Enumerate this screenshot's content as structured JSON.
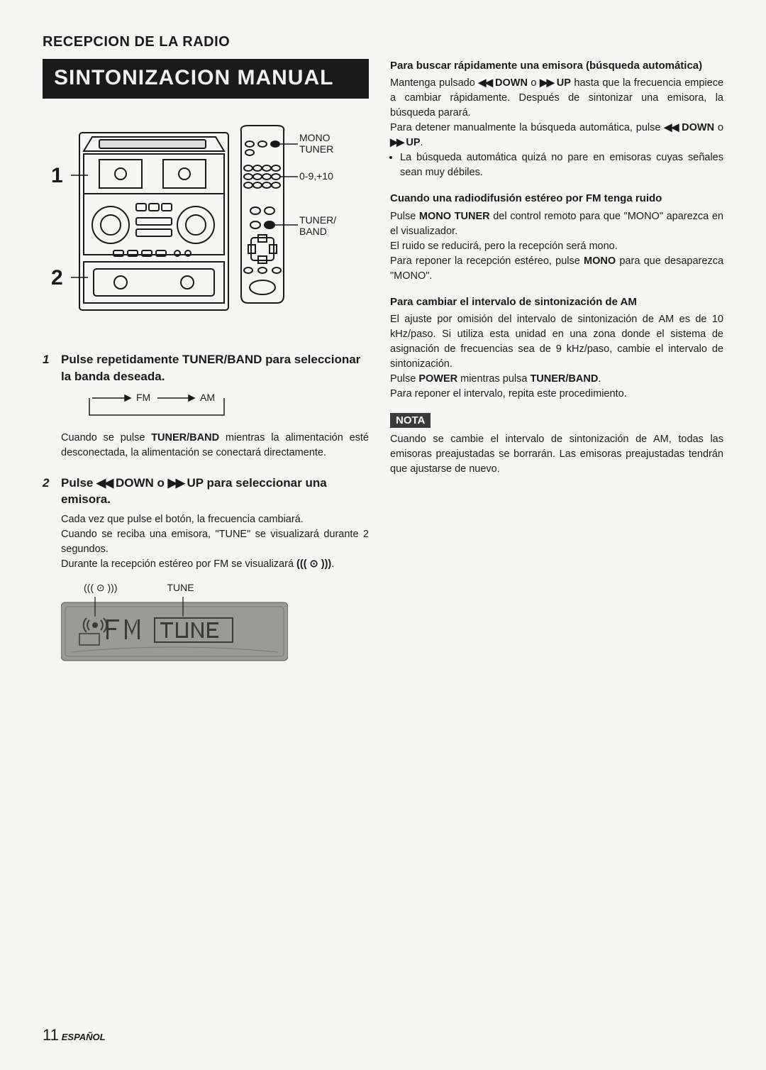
{
  "section_header": "RECEPCION DE LA RADIO",
  "title_banner": "SINTONIZACION MANUAL",
  "diagram_labels": {
    "mono_tuner_1": "MONO",
    "mono_tuner_2": "TUNER",
    "nums": "0-9,+10",
    "tuner_band_1": "TUNER/",
    "tuner_band_2": "BAND",
    "n1": "1",
    "n2": "2"
  },
  "step1": {
    "num": "1",
    "title": "Pulse repetidamente TUNER/BAND para seleccionar la banda deseada.",
    "fm": "FM",
    "am": "AM",
    "body": "Cuando se pulse <b>TUNER/BAND</b> mientras la alimentación esté desconectada, la alimentación se conectará directamente."
  },
  "step2": {
    "num": "2",
    "title": "Pulse <span class='sym'>◀◀</span> DOWN o <span class='sym'>▶▶</span> UP para seleccionar una emisora.",
    "body": "Cada vez que pulse el botón, la frecuencia cambiará.<br>Cuando se reciba una emisora, \"TUNE\" se visualizará durante 2 segundos.<br>Durante la recepción estéreo por FM se visualizará <b>((( ⊙ )))</b>."
  },
  "tune": {
    "stereo": "((( ⊙ )))",
    "tune_label": "TUNE",
    "fm": "FM",
    "tune_text": "TUNE"
  },
  "r1": {
    "head": "Para buscar rápidamente una emisora (búsqueda automática)",
    "body": "Mantenga pulsado <span class='sym'>◀◀</span> <b>DOWN</b> o <span class='sym'>▶▶</span> <b>UP</b> hasta que la frecuencia empiece a cambiar rápidamente. Después de sintonizar una emisora, la búsqueda parará.<br>Para detener manualmente la búsqueda automática, pulse <span class='sym'>◀◀</span> <b>DOWN</b> o <span class='sym'>▶▶</span> <b>UP</b>.",
    "bullet": "La búsqueda automática quizá no pare en emisoras cuyas señales sean muy débiles."
  },
  "r2": {
    "head": "Cuando una radiodifusión estéreo por FM tenga ruido",
    "body": "Pulse <b>MONO TUNER</b> del control remoto para que \"MONO\" aparezca en el visualizador.<br>El ruido se reducirá, pero la recepción será mono.<br>Para reponer la recepción estéreo, pulse <b>MONO</b> para que desaparezca \"MONO\"."
  },
  "r3": {
    "head": "Para cambiar el intervalo de sintonización de AM",
    "body": "El ajuste por omisión del intervalo de sintonización de AM es de 10 kHz/paso. Si utiliza esta unidad en una zona donde el sistema de asignación de frecuencias sea de 9 kHz/paso, cambie el intervalo de sintonización.<br>Pulse <b>POWER</b> mientras pulsa <b>TUNER/BAND</b>.<br>Para reponer el intervalo, repita este procedimiento."
  },
  "nota": {
    "label": "NOTA",
    "body": "Cuando se cambie el intervalo de sintonización de AM, todas las emisoras preajustadas se borrarán. Las emisoras preajustadas tendrán que ajustarse de nuevo."
  },
  "footer": {
    "page": "11",
    "lang": "ESPAÑOL"
  },
  "colors": {
    "banner_bg": "#1a1a1a",
    "banner_fg": "#f0f0f0",
    "page_bg": "#f5f5f3",
    "text": "#1a1a1a",
    "lcd_bg": "#9a9a96",
    "lcd_active": "#3a3a38"
  }
}
